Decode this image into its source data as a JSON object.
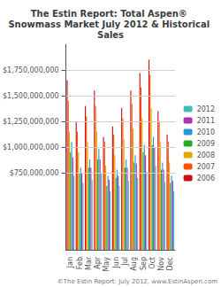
{
  "chart_data": {
    "type": "bar",
    "title": "The Estin Report: Total Aspen® Snowmass Market July 2012 & Historical Sales",
    "categories": [
      "Jan",
      "Feb",
      "Mar",
      "Apr",
      "May",
      "Jun",
      "Jul",
      "Aug",
      "Sep",
      "Oct",
      "Nov",
      "Dec"
    ],
    "series": [
      {
        "name": "2006",
        "color": "#cc1111",
        "values": [
          1.65,
          1.25,
          1.4,
          1.55,
          1.1,
          1.2,
          1.38,
          1.55,
          1.72,
          1.85,
          1.35,
          1.12
        ]
      },
      {
        "name": "2007",
        "color": "#ff5500",
        "values": [
          1.45,
          1.15,
          1.3,
          1.4,
          1.05,
          1.12,
          1.28,
          1.42,
          1.58,
          1.7,
          1.25,
          1.05
        ]
      },
      {
        "name": "2008",
        "color": "#ddaa00",
        "values": [
          1.15,
          0.95,
          1.05,
          1.15,
          0.82,
          0.92,
          1.08,
          1.18,
          1.28,
          1.38,
          1.05,
          0.85
        ]
      },
      {
        "name": "2009",
        "color": "#22aa22",
        "values": [
          0.95,
          0.75,
          0.8,
          0.88,
          0.62,
          0.7,
          0.8,
          0.85,
          0.95,
          1.02,
          0.78,
          0.65
        ]
      },
      {
        "name": "2010",
        "color": "#2299dd",
        "values": [
          1.05,
          0.8,
          0.88,
          0.98,
          0.72,
          0.78,
          0.88,
          0.92,
          1.02,
          1.1,
          0.85,
          0.72
        ]
      },
      {
        "name": "2011",
        "color": "#aa33aa",
        "values": [
          0.9,
          0.75,
          0.8,
          0.88,
          0.68,
          0.72,
          0.8,
          0.84,
          0.92,
          1.0,
          0.78,
          0.67
        ]
      },
      {
        "name": "2012",
        "color": "#44bbbb",
        "values": [
          0.72,
          0.65,
          0.68,
          0.75,
          0.57,
          0.62,
          0.67,
          0.7,
          0.76,
          0.82,
          0.66,
          0.57
        ]
      }
    ],
    "ylim": [
      0,
      2.0
    ],
    "yticks": [
      {
        "value": 0.75,
        "label": "$750,000,000"
      },
      {
        "value": 1.0,
        "label": "$1,000,000,000"
      },
      {
        "value": 1.25,
        "label": "$1,250,000,000"
      },
      {
        "value": 1.5,
        "label": "$1,500,000,000"
      },
      {
        "value": 1.75,
        "label": "$1,750,000,000"
      }
    ],
    "grid": true,
    "legend": "right",
    "annotations": [
      "©The Estin Report: July 2012, www.EstinAspen.com"
    ]
  }
}
